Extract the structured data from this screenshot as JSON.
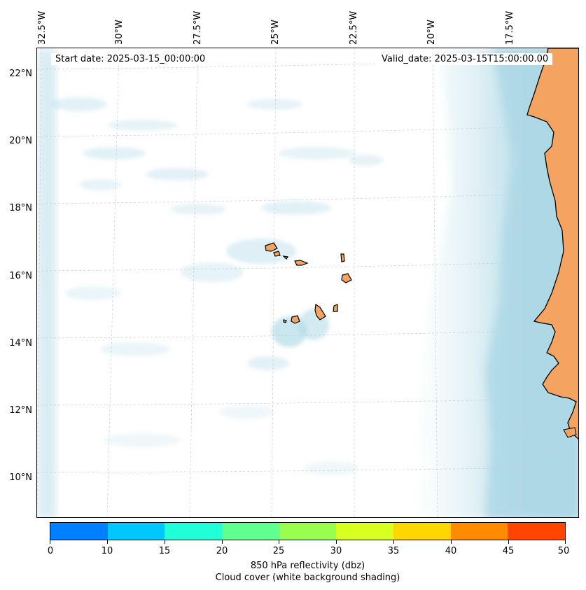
{
  "map": {
    "start_date": "Start date: 2025-03-15_00:00:00",
    "valid_date": "Valid_date: 2025-03-15T15:00:00.00",
    "lon_labels": [
      "32.5°W",
      "30°W",
      "27.5°W",
      "25°W",
      "22.5°W",
      "20°W",
      "17.5°W"
    ],
    "lat_labels": [
      "22°N",
      "20°N",
      "18°N",
      "16°N",
      "14°N",
      "12°N",
      "10°N"
    ],
    "land_color": "#f4a460",
    "cloud_color": "#add8e6"
  },
  "colorbar": {
    "ticks": [
      "0",
      "10",
      "15",
      "20",
      "25",
      "30",
      "35",
      "40",
      "45",
      "50"
    ],
    "colors": [
      "#0080ff",
      "#00c8ff",
      "#20ffd8",
      "#60ff90",
      "#98ff50",
      "#d8ff20",
      "#ffd700",
      "#ff8c00",
      "#ff4500"
    ],
    "label": "850 hPa reflectivity (dbz)",
    "sublabel": "Cloud cover (white background shading)"
  }
}
